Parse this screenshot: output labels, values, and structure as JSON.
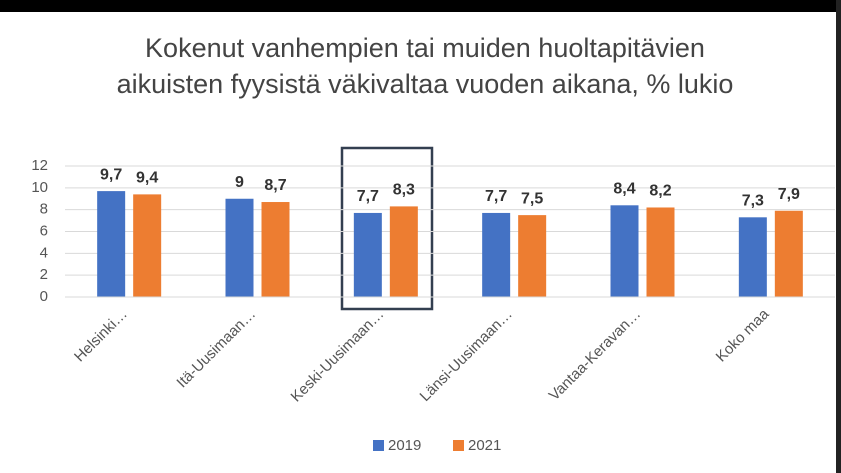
{
  "chart_data": {
    "type": "bar",
    "title": "Kokenut vanhempien tai muiden huoltapitävien aikuisten fyysistä väkivaltaa vuoden aikana, % lukio",
    "categories": [
      "Helsinki…",
      "Itä-Uusimaan…",
      "Keski-Uusimaan…",
      "Länsi-Uusimaan…",
      "Vantaa-Keravan…",
      "Koko maa"
    ],
    "series": [
      {
        "name": "2019",
        "color": "#4472c4",
        "values": [
          9.7,
          9,
          7.7,
          7.7,
          8.4,
          7.3
        ],
        "value_labels": [
          "9,7",
          "9",
          "7,7",
          "7,7",
          "8,4",
          "7,3"
        ]
      },
      {
        "name": "2021",
        "color": "#ed7d31",
        "values": [
          9.4,
          8.7,
          8.3,
          7.5,
          8.2,
          7.9
        ],
        "value_labels": [
          "9,4",
          "8,7",
          "8,3",
          "7,5",
          "8,2",
          "7,9"
        ]
      }
    ],
    "ylim": [
      0,
      12
    ],
    "yticks": [
      0,
      2,
      4,
      6,
      8,
      10,
      12
    ],
    "grid": true,
    "legend": "bottom"
  }
}
